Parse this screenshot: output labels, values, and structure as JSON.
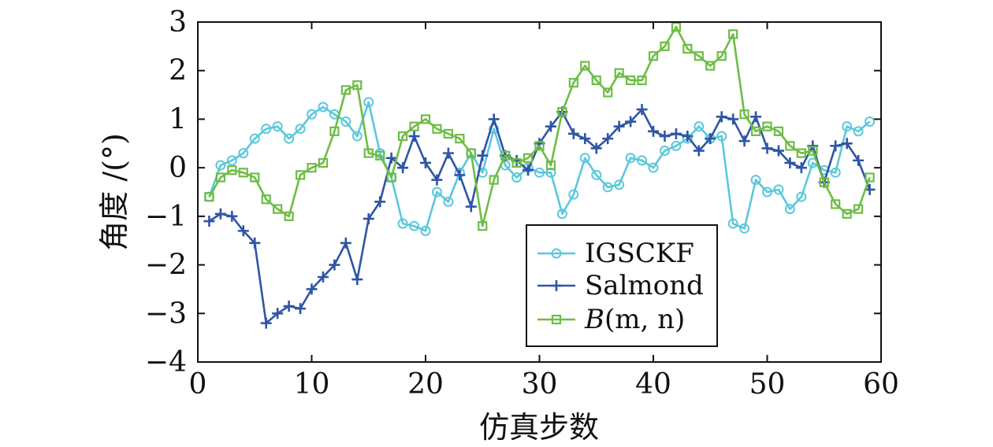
{
  "chart_data": {
    "type": "line",
    "xlabel": "仿真步数",
    "ylabel": "角度 /(°)",
    "xlim": [
      0,
      60
    ],
    "ylim": [
      -4,
      3
    ],
    "x_ticks": [
      0,
      10,
      20,
      30,
      40,
      50,
      60
    ],
    "y_ticks": [
      3,
      2,
      1,
      0,
      -1,
      -2,
      -3,
      -4
    ],
    "y_tick_labels": [
      "3",
      "2",
      "1",
      "0",
      "−1",
      "−2",
      "−3",
      "−4"
    ],
    "grid": false,
    "legend_position": "lower-right",
    "x": [
      1,
      2,
      3,
      4,
      5,
      6,
      7,
      8,
      9,
      10,
      11,
      12,
      13,
      14,
      15,
      16,
      17,
      18,
      19,
      20,
      21,
      22,
      23,
      24,
      25,
      26,
      27,
      28,
      29,
      30,
      31,
      32,
      33,
      34,
      35,
      36,
      37,
      38,
      39,
      40,
      41,
      42,
      43,
      44,
      45,
      46,
      47,
      48,
      49,
      50,
      51,
      52,
      53,
      54,
      55,
      56,
      57,
      58,
      59
    ],
    "series": [
      {
        "name": "IGSCKF",
        "color": "#5bc8dc",
        "marker": "circle",
        "values": [
          -0.6,
          0.05,
          0.15,
          0.3,
          0.6,
          0.8,
          0.85,
          0.6,
          0.8,
          1.1,
          1.25,
          1.1,
          0.95,
          0.65,
          1.35,
          0.3,
          -0.2,
          -1.15,
          -1.2,
          -1.3,
          -0.5,
          -0.7,
          -0.1,
          0.3,
          -0.1,
          0.8,
          0.05,
          -0.2,
          0.0,
          -0.1,
          -0.1,
          -0.95,
          -0.55,
          0.2,
          -0.15,
          -0.4,
          -0.35,
          0.2,
          0.15,
          0.0,
          0.35,
          0.45,
          0.6,
          0.85,
          0.6,
          0.65,
          -1.15,
          -1.25,
          -0.25,
          -0.5,
          -0.45,
          -0.85,
          -0.6,
          0.1,
          -0.05,
          -0.1,
          0.85,
          0.75,
          0.95
        ]
      },
      {
        "name": "Salmond",
        "color": "#2f55a4",
        "marker": "plus",
        "values": [
          -1.1,
          -0.95,
          -1.0,
          -1.3,
          -1.55,
          -3.2,
          -3.0,
          -2.85,
          -2.9,
          -2.5,
          -2.25,
          -2.0,
          -1.55,
          -2.3,
          -1.05,
          -0.7,
          0.2,
          0.0,
          0.65,
          0.1,
          -0.25,
          0.3,
          -0.15,
          -0.8,
          0.25,
          1.0,
          0.25,
          0.15,
          -0.05,
          0.5,
          0.85,
          1.15,
          0.7,
          0.6,
          0.4,
          0.6,
          0.85,
          0.95,
          1.2,
          0.75,
          0.65,
          0.7,
          0.65,
          0.35,
          0.6,
          1.05,
          1.0,
          0.55,
          1.05,
          0.4,
          0.35,
          0.1,
          0.0,
          0.45,
          -0.3,
          0.45,
          0.5,
          0.15,
          -0.45
        ]
      },
      {
        "name": "B(m, n)",
        "color": "#6dbd45",
        "marker": "square",
        "values": [
          -0.6,
          -0.2,
          -0.05,
          -0.1,
          -0.2,
          -0.65,
          -0.85,
          -1.0,
          -0.15,
          0.0,
          0.1,
          0.75,
          1.6,
          1.7,
          0.3,
          0.25,
          -0.2,
          0.65,
          0.85,
          1.0,
          0.8,
          0.7,
          0.6,
          0.3,
          -1.2,
          -0.25,
          0.25,
          0.1,
          0.2,
          0.45,
          0.05,
          1.15,
          1.75,
          2.1,
          1.8,
          1.55,
          1.95,
          1.8,
          1.8,
          2.3,
          2.5,
          2.9,
          2.45,
          2.3,
          2.1,
          2.3,
          2.75,
          1.1,
          0.75,
          0.85,
          0.75,
          0.45,
          0.3,
          0.35,
          -0.3,
          -0.75,
          -0.95,
          -0.85,
          -0.2
        ]
      }
    ]
  },
  "legend": {
    "items": [
      {
        "label": "IGSCKF",
        "color": "#5bc8dc",
        "marker": "circle"
      },
      {
        "label": "Salmond",
        "color": "#2f55a4",
        "marker": "plus"
      },
      {
        "label_main": "B",
        "label_args": "(m, n)",
        "color": "#6dbd45",
        "marker": "square"
      }
    ]
  }
}
